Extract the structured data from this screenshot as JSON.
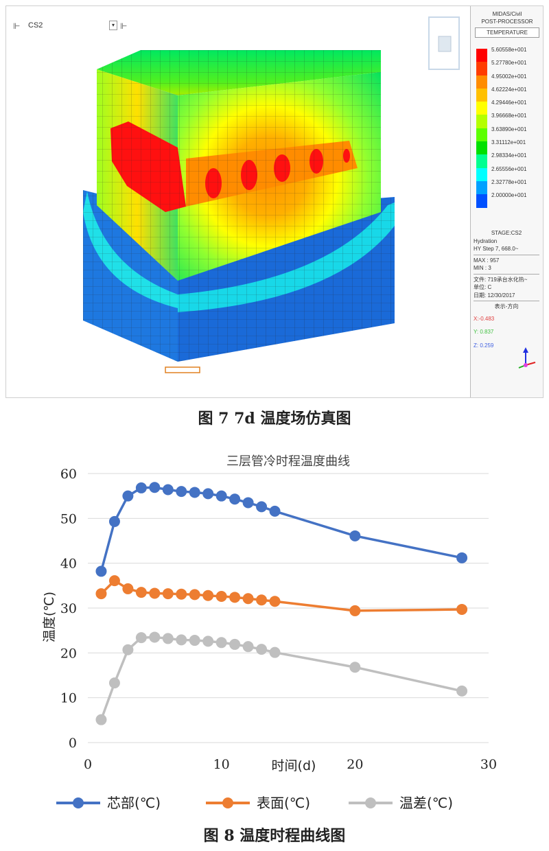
{
  "figure7": {
    "caption": "图 7  7d 温度场仿真图",
    "toolbar": {
      "stage": "CS2"
    },
    "panel": {
      "header_lines": [
        "MIDAS/Civil",
        "POST-PROCESSOR"
      ],
      "result_type": "TEMPERATURE",
      "legend": [
        {
          "value": "5.60558e+001",
          "color": "#ff0000"
        },
        {
          "value": "5.27780e+001",
          "color": "#ff3c00"
        },
        {
          "value": "4.95002e+001",
          "color": "#ff8c00"
        },
        {
          "value": "4.62224e+001",
          "color": "#ffc000"
        },
        {
          "value": "4.29446e+001",
          "color": "#ffff00"
        },
        {
          "value": "3.96668e+001",
          "color": "#b4ff00"
        },
        {
          "value": "3.63890e+001",
          "color": "#5cff00"
        },
        {
          "value": "3.31112e+001",
          "color": "#00e000"
        },
        {
          "value": "2.98334e+001",
          "color": "#00ff90"
        },
        {
          "value": "2.65556e+001",
          "color": "#00ffff"
        },
        {
          "value": "2.32778e+001",
          "color": "#00a0ff"
        },
        {
          "value": "2.00000e+001",
          "color": "#0050ff"
        }
      ],
      "info": {
        "stage": "STAGE:CS2",
        "step_type": "Hydration",
        "step": "HY Step 7, 668.0~",
        "max": "MAX : 957",
        "min": "MIN : 3",
        "file": "文件: 719承台水化热~",
        "unit": "单位: C",
        "date": "日期: 12/30/2017",
        "view_dir": "表示-方向",
        "x": "X:-0.483",
        "y": "Y: 0.837",
        "z": "Z: 0.259"
      }
    }
  },
  "figure8": {
    "caption": "图 8  温度时程曲线图",
    "chart_data": {
      "type": "line",
      "title": "三层管冷时程温度曲线",
      "xlabel": "时间(d)",
      "ylabel": "温度(℃)",
      "xlim": [
        0,
        30
      ],
      "ylim": [
        0,
        60
      ],
      "xticks": [
        0,
        10,
        20,
        30
      ],
      "yticks": [
        0,
        10,
        20,
        30,
        40,
        50,
        60
      ],
      "grid": "horizontal",
      "legend_position": "bottom",
      "series": [
        {
          "name": "芯部(℃)",
          "color": "#4472c4",
          "x": [
            1,
            2,
            3,
            4,
            5,
            6,
            7,
            8,
            9,
            10,
            11,
            12,
            13,
            14,
            20,
            28
          ],
          "y": [
            38.2,
            49.3,
            55.0,
            56.8,
            56.9,
            56.4,
            56.0,
            55.8,
            55.5,
            55.0,
            54.3,
            53.5,
            52.6,
            51.6,
            46.1,
            41.2
          ]
        },
        {
          "name": "表面(℃)",
          "color": "#ed7d31",
          "x": [
            1,
            2,
            3,
            4,
            5,
            6,
            7,
            8,
            9,
            10,
            11,
            12,
            13,
            14,
            20,
            28
          ],
          "y": [
            33.2,
            36.1,
            34.3,
            33.5,
            33.3,
            33.2,
            33.1,
            33.0,
            32.8,
            32.6,
            32.4,
            32.1,
            31.8,
            31.5,
            29.4,
            29.7
          ]
        },
        {
          "name": "温差(℃)",
          "color": "#bfbfbf",
          "x": [
            1,
            2,
            3,
            4,
            5,
            6,
            7,
            8,
            9,
            10,
            11,
            12,
            13,
            14,
            20,
            28
          ],
          "y": [
            5.1,
            13.3,
            20.7,
            23.4,
            23.5,
            23.2,
            22.9,
            22.8,
            22.6,
            22.3,
            21.9,
            21.4,
            20.8,
            20.1,
            16.8,
            11.5
          ]
        }
      ]
    }
  }
}
